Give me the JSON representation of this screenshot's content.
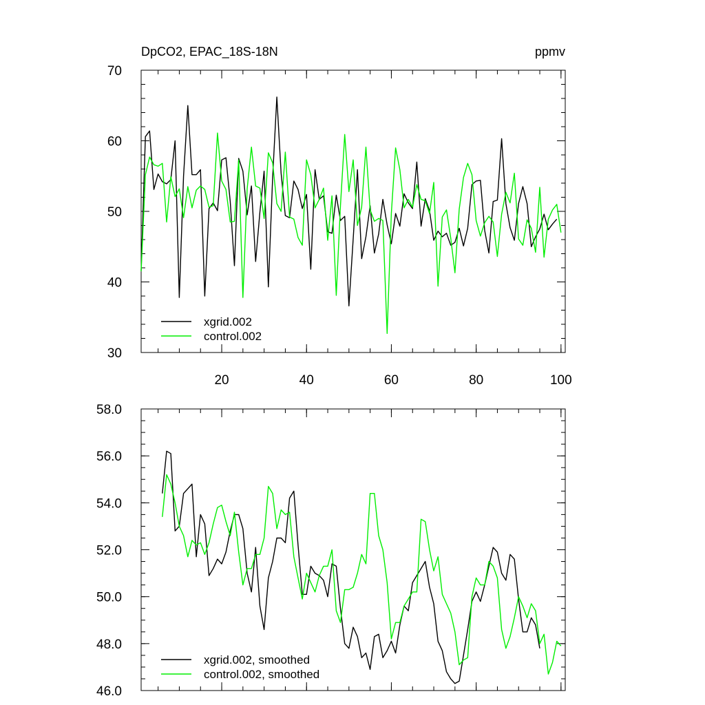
{
  "chart_data": [
    {
      "type": "line",
      "title_left": "DpCO2, EPAC_18S-18N",
      "title_right": "ppmv",
      "xlim": [
        1,
        101
      ],
      "ylim": [
        30,
        70
      ],
      "x_ticks": [
        20,
        40,
        60,
        80,
        100
      ],
      "x_tick_labels": [
        "20",
        "40",
        "60",
        "80",
        "100"
      ],
      "x_minor_step": 5,
      "x_labels_shown": true,
      "y_ticks": [
        30,
        40,
        50,
        60,
        70
      ],
      "y_tick_labels": [
        "30",
        "40",
        "50",
        "60",
        "70"
      ],
      "y_minor_step": 2,
      "legend_position": "lower-left",
      "series": [
        {
          "name": "xgrid.002",
          "color": "#000000",
          "values": [
            41.6,
            60.6,
            61.4,
            53.1,
            55.3,
            54.2,
            53.9,
            54.5,
            60.0,
            37.8,
            55.0,
            65.0,
            55.2,
            55.2,
            55.9,
            38.0,
            50.4,
            51.2,
            50.1,
            57.3,
            57.6,
            51.4,
            42.3,
            57.5,
            55.7,
            49.5,
            53.6,
            42.9,
            49.9,
            55.7,
            39.3,
            54.8,
            66.2,
            55.4,
            49.4,
            49.1,
            54.3,
            53.1,
            50.4,
            52.4,
            41.8,
            55.9,
            51.7,
            52.2,
            47.1,
            46.9,
            52.3,
            48.7,
            49.3,
            36.6,
            46.1,
            55.9,
            43.3,
            46.4,
            50.8,
            44.1,
            46.8,
            51.7,
            48.1,
            45.4,
            49.7,
            47.9,
            52.5,
            51.2,
            50.4,
            57.0,
            47.9,
            51.8,
            50.1,
            45.9,
            47.2,
            46.4,
            46.9,
            45.2,
            45.6,
            47.6,
            45.1,
            47.6,
            53.8,
            54.3,
            54.4,
            47.3,
            44.1,
            51.4,
            51.6,
            60.3,
            51.1,
            47.7,
            45.9,
            51.1,
            53.5,
            51.1,
            45.0,
            46.4,
            47.5,
            49.6,
            47.4,
            48.2,
            48.9
          ]
        },
        {
          "name": "control.002",
          "color": "#00ee00",
          "values": [
            41.5,
            55.2,
            57.7,
            56.6,
            56.4,
            56.8,
            48.5,
            54.9,
            52.1,
            53.2,
            49.1,
            53.5,
            50.5,
            53.0,
            53.6,
            53.1,
            50.6,
            50.8,
            61.1,
            54.3,
            53.1,
            48.5,
            48.6,
            57.3,
            37.8,
            53.2,
            59.1,
            53.6,
            53.3,
            49.0,
            58.3,
            56.9,
            51.1,
            50.0,
            58.4,
            49.2,
            48.9,
            46.3,
            45.2,
            57.3,
            55.2,
            50.5,
            51.7,
            53.3,
            45.9,
            52.2,
            38.1,
            50.8,
            60.9,
            52.8,
            57.3,
            48.0,
            50.6,
            59.1,
            50.2,
            48.6,
            49.0,
            48.7,
            32.7,
            49.7,
            59.0,
            55.9,
            50.5,
            51.7,
            50.6,
            53.8,
            51.7,
            51.5,
            49.7,
            54.1,
            39.4,
            49.2,
            50.2,
            46.2,
            41.3,
            50.3,
            54.8,
            56.8,
            55.2,
            48.7,
            46.5,
            48.4,
            49.3,
            48.5,
            43.6,
            49.6,
            52.7,
            51.2,
            55.4,
            46.1,
            45.2,
            48.8,
            47.6,
            44.2,
            53.4,
            43.5,
            48.9,
            50.2,
            51.0,
            47.0
          ]
        }
      ]
    },
    {
      "type": "line",
      "xlim": [
        1,
        101
      ],
      "ylim": [
        46,
        58
      ],
      "x_ticks": [
        20,
        40,
        60,
        80,
        100
      ],
      "x_tick_labels": [
        "",
        "",
        "",
        "",
        ""
      ],
      "x_minor_step": 5,
      "x_labels_shown": false,
      "y_ticks": [
        46,
        48,
        50,
        52,
        54,
        56,
        58
      ],
      "y_tick_labels": [
        "46.0",
        "48.0",
        "50.0",
        "52.0",
        "54.0",
        "56.0",
        "58.0"
      ],
      "y_minor_step": 0.5,
      "legend_position": "lower-left",
      "series": [
        {
          "name": "xgrid.002, smoothed",
          "color": "#000000",
          "x_start": 6,
          "values": [
            54.4,
            56.2,
            56.1,
            52.8,
            53.0,
            54.4,
            54.6,
            54.8,
            51.7,
            53.5,
            53.1,
            50.9,
            51.2,
            51.6,
            51.4,
            51.9,
            52.8,
            53.5,
            53.5,
            52.9,
            51.0,
            50.2,
            52.1,
            49.6,
            48.6,
            50.8,
            51.5,
            52.5,
            52.5,
            52.3,
            54.2,
            54.5,
            52.2,
            50.1,
            50.1,
            51.3,
            51.0,
            50.9,
            50.7,
            50.0,
            51.4,
            51.3,
            49.5,
            48.0,
            47.8,
            48.7,
            48.3,
            47.4,
            47.6,
            46.9,
            48.3,
            48.4,
            47.4,
            47.7,
            48.1,
            47.6,
            48.8,
            49.6,
            49.4,
            50.6,
            50.9,
            51.2,
            51.5,
            50.4,
            49.7,
            48.1,
            47.7,
            46.8,
            46.5,
            46.3,
            46.4,
            47.5,
            48.6,
            49.8,
            50.2,
            49.8,
            50.5,
            51.3,
            52.1,
            51.9,
            51.0,
            50.7,
            51.8,
            51.6,
            49.9,
            48.5,
            48.5,
            49.1,
            48.8,
            47.8
          ]
        },
        {
          "name": "control.002, smoothed",
          "color": "#00ee00",
          "x_start": 6,
          "values": [
            53.4,
            55.2,
            54.8,
            54.0,
            53.0,
            52.6,
            51.7,
            52.4,
            52.2,
            52.3,
            51.8,
            52.3,
            53.1,
            53.8,
            53.9,
            53.2,
            52.6,
            53.6,
            51.9,
            50.5,
            51.2,
            51.2,
            51.8,
            51.8,
            52.5,
            54.7,
            54.4,
            52.9,
            53.7,
            53.5,
            53.6,
            51.7,
            50.8,
            49.9,
            51.0,
            50.6,
            50.2,
            50.9,
            51.3,
            51.3,
            52.0,
            49.4,
            48.9,
            50.3,
            50.3,
            50.4,
            51.0,
            51.8,
            51.4,
            54.4,
            54.4,
            52.6,
            52.0,
            50.6,
            48.2,
            48.9,
            48.9,
            49.6,
            49.9,
            50.2,
            50.2,
            53.3,
            53.2,
            52.0,
            51.1,
            51.7,
            50.1,
            49.7,
            49.3,
            48.5,
            47.1,
            47.3,
            47.4,
            50.0,
            50.8,
            50.5,
            50.5,
            51.5,
            51.3,
            50.8,
            48.6,
            47.8,
            48.3,
            49.1,
            50.0,
            49.6,
            49.1,
            49.7,
            49.4,
            48.0,
            48.4,
            46.7,
            47.2,
            48.1,
            47.9
          ]
        }
      ]
    }
  ]
}
